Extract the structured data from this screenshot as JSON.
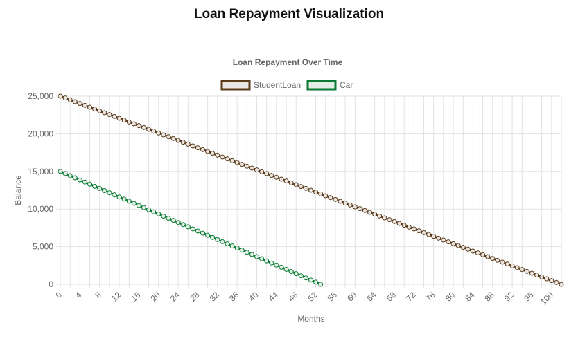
{
  "page": {
    "title": "Loan Repayment Visualization"
  },
  "chart_data": {
    "type": "line",
    "title": "Loan Repayment Over Time",
    "xlabel": "Months",
    "ylabel": "Balance",
    "xlim": [
      0,
      102
    ],
    "ylim": [
      0,
      25000
    ],
    "x_ticks": [
      "0",
      "4",
      "8",
      "12",
      "16",
      "20",
      "24",
      "28",
      "32",
      "36",
      "40",
      "44",
      "48",
      "52",
      "56",
      "60",
      "64",
      "68",
      "72",
      "76",
      "80",
      "84",
      "88",
      "92",
      "96",
      "100"
    ],
    "y_ticks": [
      "0",
      "5,000",
      "10,000",
      "15,000",
      "20,000",
      "25,000"
    ],
    "grid": true,
    "legend_position": "top",
    "series": [
      {
        "name": "StudentLoan",
        "color": "#5a3b18",
        "fill": "#e9e6e3",
        "start_month": 0,
        "end_month": 102,
        "start_balance": 25000,
        "end_balance": 0
      },
      {
        "name": "Car",
        "color": "#0a7a34",
        "fill": "#e3efe6",
        "start_month": 0,
        "end_month": 53,
        "start_balance": 15000,
        "end_balance": 0
      }
    ]
  }
}
